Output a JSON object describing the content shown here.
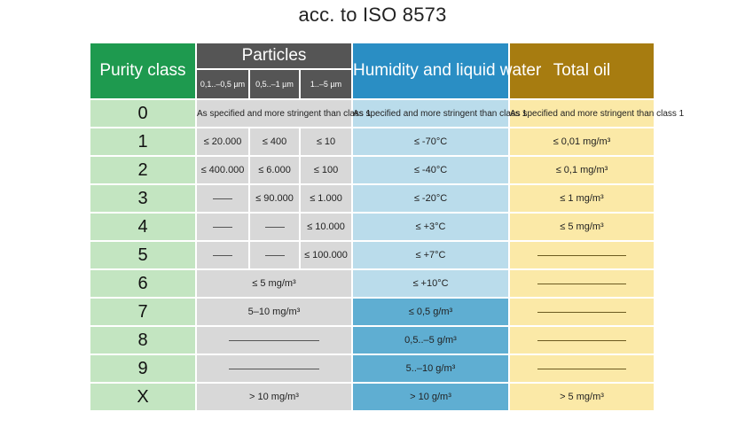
{
  "title": "acc. to ISO 8573",
  "colors": {
    "purity_header": "#1e9a4f",
    "particles_header": "#555555",
    "humidity_header": "#2a8ec4",
    "oil_header": "#a77c10",
    "class_cell": "#c3e5c1",
    "particles_cell": "#d8d8d8",
    "humidity_cell_light": "#badceb",
    "humidity_cell_dark": "#5faed2",
    "oil_cell": "#fbe9a7"
  },
  "header": {
    "purity_class": "Purity class",
    "particles": "Particles",
    "particle_sizes": [
      "0,1..–0,5 µm",
      "0,5..–1 µm",
      "1..–5 µm"
    ],
    "humidity": "Humidity and liquid water",
    "total_oil": "Total oil"
  },
  "rows": {
    "r0": {
      "class": "0",
      "particles": "As specified and more stringent than class 1",
      "humidity": "As specified and more stringent than class 1",
      "oil": "As specified and more stringent than class 1"
    },
    "r1": {
      "class": "1",
      "p1": "≤ 20.000",
      "p2": "≤ 400",
      "p3": "≤ 10",
      "humidity": "≤ -70°C",
      "oil": "≤ 0,01 mg/m³"
    },
    "r2": {
      "class": "2",
      "p1": "≤ 400.000",
      "p2": "≤ 6.000",
      "p3": "≤ 100",
      "humidity": "≤ -40°C",
      "oil": "≤ 0,1 mg/m³"
    },
    "r3": {
      "class": "3",
      "p2": "≤ 90.000",
      "p3": "≤ 1.000",
      "humidity": "≤ -20°C",
      "oil": "≤ 1 mg/m³"
    },
    "r4": {
      "class": "4",
      "p3": "≤ 10.000",
      "humidity": "≤ +3°C",
      "oil": "≤ 5 mg/m³"
    },
    "r5": {
      "class": "5",
      "p3": "≤ 100.000",
      "humidity": "≤ +7°C"
    },
    "r6": {
      "class": "6",
      "particles": "≤ 5 mg/m³",
      "humidity": "≤ +10°C"
    },
    "r7": {
      "class": "7",
      "particles": "5–10 mg/m³",
      "humidity": "≤ 0,5 g/m³"
    },
    "r8": {
      "class": "8",
      "humidity": "0,5..–5 g/m³"
    },
    "r9": {
      "class": "9",
      "humidity": "5..–10 g/m³"
    },
    "rX": {
      "class": "X",
      "particles": "> 10 mg/m³",
      "humidity": "> 10 g/m³",
      "oil": "> 5 mg/m³"
    }
  }
}
